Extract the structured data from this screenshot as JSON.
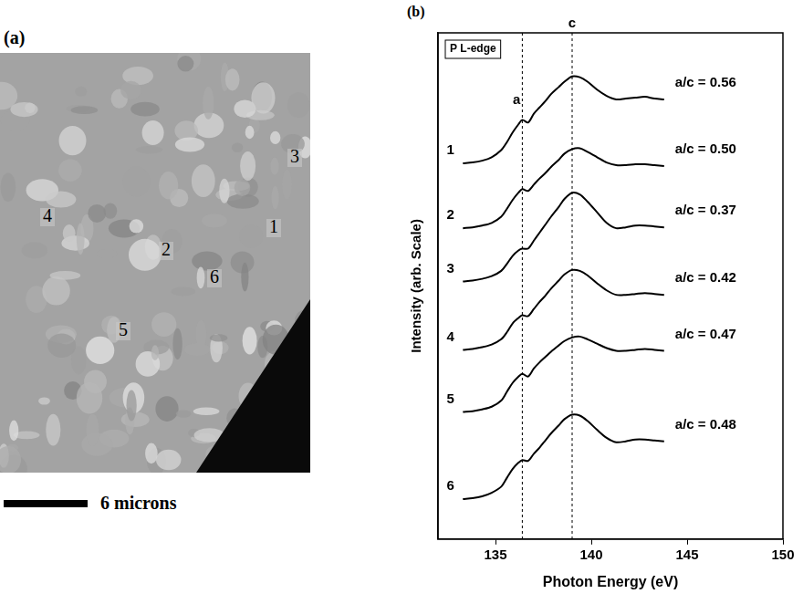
{
  "image_panel": {
    "label": "(a)",
    "markers": [
      "1",
      "2",
      "3",
      "4",
      "5",
      "6"
    ],
    "scale_bar": "6 microns"
  },
  "chart_data": {
    "type": "line",
    "label": "(b)",
    "box_label": "P L-edge",
    "xlabel": "Photon Energy (eV)",
    "ylabel": "Intensity (arb. Scale)",
    "xlim": [
      132,
      150
    ],
    "xticks": [
      135,
      140,
      145,
      150
    ],
    "ylim": [
      0,
      57
    ],
    "tick_labels": "x",
    "grid": false,
    "color": "#000000",
    "x": [
      133.3,
      133.8,
      134.3,
      134.8,
      135.3,
      135.6,
      135.9,
      136.2,
      136.4,
      136.7,
      137.0,
      137.3,
      137.6,
      137.9,
      138.3,
      138.6,
      139.0,
      139.4,
      139.8,
      140.3,
      140.8,
      141.3,
      141.8,
      142.3,
      142.8,
      143.3,
      143.8
    ],
    "series": [
      {
        "name": "1",
        "annotation": "a/c = 0.56",
        "values": [
          42.3,
          42.4,
          42.6,
          43.0,
          43.8,
          44.7,
          45.8,
          46.7,
          47.2,
          46.9,
          47.9,
          48.6,
          49.3,
          50.1,
          50.9,
          51.5,
          52.1,
          52.0,
          51.5,
          50.6,
          49.9,
          49.5,
          49.6,
          49.7,
          49.8,
          49.6,
          49.5
        ]
      },
      {
        "name": "2",
        "annotation": "a/c = 0.50",
        "values": [
          35.0,
          35.1,
          35.3,
          35.6,
          36.3,
          37.2,
          38.2,
          39.0,
          39.4,
          39.2,
          39.9,
          40.6,
          41.2,
          41.9,
          42.7,
          43.4,
          43.9,
          44.0,
          43.6,
          43.0,
          42.4,
          42.1,
          42.1,
          42.2,
          42.2,
          42.1,
          42.0
        ]
      },
      {
        "name": "3",
        "annotation": "a/c = 0.37",
        "values": [
          29.0,
          29.1,
          29.3,
          29.6,
          30.2,
          31.0,
          31.9,
          32.5,
          32.7,
          32.7,
          33.6,
          34.5,
          35.4,
          36.3,
          37.4,
          38.3,
          39.0,
          38.8,
          38.0,
          36.8,
          35.6,
          35.0,
          35.1,
          35.3,
          35.3,
          35.2,
          35.1
        ]
      },
      {
        "name": "4",
        "annotation": "a/c = 0.42",
        "values": [
          21.3,
          21.4,
          21.6,
          21.9,
          22.5,
          23.3,
          24.3,
          24.9,
          25.2,
          25.1,
          25.9,
          26.7,
          27.4,
          28.2,
          29.1,
          29.8,
          30.3,
          30.2,
          29.7,
          28.8,
          28.0,
          27.5,
          27.5,
          27.6,
          27.7,
          27.6,
          27.5
        ]
      },
      {
        "name": "5",
        "annotation": "a/c = 0.47",
        "values": [
          14.3,
          14.4,
          14.6,
          14.9,
          15.6,
          16.6,
          17.6,
          18.3,
          18.6,
          18.3,
          19.2,
          19.9,
          20.5,
          21.1,
          21.8,
          22.3,
          22.7,
          22.8,
          22.5,
          22.0,
          21.5,
          21.2,
          21.2,
          21.3,
          21.4,
          21.3,
          21.2
        ]
      },
      {
        "name": "6",
        "annotation": "a/c = 0.48",
        "values": [
          4.5,
          4.6,
          4.8,
          5.2,
          5.9,
          6.9,
          7.9,
          8.6,
          8.9,
          8.8,
          9.6,
          10.3,
          11.1,
          11.9,
          12.8,
          13.5,
          14.0,
          13.9,
          13.3,
          12.3,
          11.4,
          10.9,
          11.0,
          11.2,
          11.2,
          11.1,
          11.0
        ]
      }
    ],
    "vlines": [
      {
        "value": 136.4,
        "label": "a",
        "line_style": "dashed"
      },
      {
        "value": 139.0,
        "label": "c",
        "line_style": "dashed"
      }
    ]
  }
}
